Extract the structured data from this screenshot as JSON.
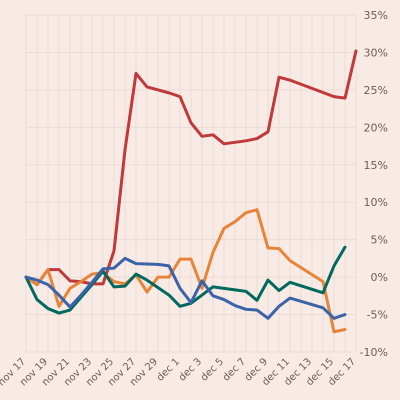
{
  "chart_data": {
    "type": "line",
    "x": [
      "nov 17",
      "nov 18",
      "nov 19",
      "nov 20",
      "nov 21",
      "nov 22",
      "nov 23",
      "nov 24",
      "nov 25",
      "nov 26",
      "nov 27",
      "nov 28",
      "nov 29",
      "nov 30",
      "dec 1",
      "dec 2",
      "dec 3",
      "dec 4",
      "dec 5",
      "dec 6",
      "dec 7",
      "dec 8",
      "dec 9",
      "dec 10",
      "dec 11",
      "dec 12",
      "dec 13",
      "dec 14",
      "dec 15",
      "dec 16",
      "dec 17"
    ],
    "x_tick_labels": [
      "nov 17",
      "nov 19",
      "nov 21",
      "nov 23",
      "nov 25",
      "nov 27",
      "nov 29",
      "dec 1",
      "dec 3",
      "dec 5",
      "dec 7",
      "dec 9",
      "dec 11",
      "dec 13",
      "dec 15",
      "dec 17"
    ],
    "y_tick_labels": [
      "35%",
      "30%",
      "25%",
      "20%",
      "15%",
      "10%",
      "5%",
      "0%",
      "-5%",
      "-10%"
    ],
    "y_ticks": [
      35,
      30,
      25,
      20,
      15,
      10,
      5,
      0,
      -5,
      -10
    ],
    "ylim": [
      -10,
      35
    ],
    "grid": true,
    "series": [
      {
        "color": "#c0393b",
        "points": [
          [
            "nov 17",
            0
          ],
          [
            "nov 18",
            -1
          ],
          [
            "nov 19",
            1
          ],
          [
            "nov 20",
            1
          ],
          [
            "nov 21",
            -0.5
          ],
          [
            "nov 22",
            -0.6
          ],
          [
            "nov 23",
            -0.9
          ],
          [
            "nov 24",
            -0.9
          ],
          [
            "nov 25",
            3.5
          ],
          [
            "nov 26",
            17
          ],
          [
            "nov 27",
            27.2
          ],
          [
            "nov 28",
            25.4
          ],
          [
            "nov 30",
            24.6
          ],
          [
            "dec 1",
            24.1
          ],
          [
            "dec 2",
            20.6
          ],
          [
            "dec 3",
            18.8
          ],
          [
            "dec 4",
            19
          ],
          [
            "dec 5",
            17.8
          ],
          [
            "dec 7",
            18.2
          ],
          [
            "dec 8",
            18.5
          ],
          [
            "dec 9",
            19.4
          ],
          [
            "dec 10",
            26.7
          ],
          [
            "dec 11",
            26.3
          ],
          [
            "dec 15",
            24.1
          ],
          [
            "dec 16",
            23.9
          ],
          [
            "dec 17",
            30.2
          ]
        ]
      },
      {
        "color": "#e6843a",
        "points": [
          [
            "nov 17",
            0
          ],
          [
            "nov 18",
            -1
          ],
          [
            "nov 19",
            1
          ],
          [
            "nov 20",
            -3.9
          ],
          [
            "nov 21",
            -1.5
          ],
          [
            "nov 22",
            -0.6
          ],
          [
            "nov 23",
            0.4
          ],
          [
            "nov 24",
            0.6
          ],
          [
            "nov 25",
            -0.6
          ],
          [
            "nov 26",
            -0.9
          ],
          [
            "nov 27",
            0.3
          ],
          [
            "nov 28",
            -2
          ],
          [
            "nov 29",
            0
          ],
          [
            "nov 30",
            0
          ],
          [
            "dec 1",
            2.4
          ],
          [
            "dec 2",
            2.4
          ],
          [
            "dec 3",
            -1.5
          ],
          [
            "dec 4",
            3.3
          ],
          [
            "dec 5",
            6.5
          ],
          [
            "dec 6",
            7.4
          ],
          [
            "dec 7",
            8.6
          ],
          [
            "dec 8",
            9
          ],
          [
            "dec 9",
            3.9
          ],
          [
            "dec 10",
            3.8
          ],
          [
            "dec 11",
            2.2
          ],
          [
            "dec 14",
            -0.6
          ],
          [
            "dec 15",
            -7.3
          ],
          [
            "dec 16",
            -7
          ]
        ]
      },
      {
        "color": "#006a5e",
        "points": [
          [
            "nov 17",
            0
          ],
          [
            "nov 18",
            -3
          ],
          [
            "nov 19",
            -4.2
          ],
          [
            "nov 20",
            -4.8
          ],
          [
            "nov 21",
            -4.4
          ],
          [
            "nov 22",
            -2.7
          ],
          [
            "nov 23",
            -1
          ],
          [
            "nov 24",
            0.8
          ],
          [
            "nov 25",
            -1.3
          ],
          [
            "nov 26",
            -1.2
          ],
          [
            "nov 27",
            0.4
          ],
          [
            "nov 28",
            -0.4
          ],
          [
            "nov 29",
            -1.4
          ],
          [
            "nov 30",
            -2.4
          ],
          [
            "dec 1",
            -3.9
          ],
          [
            "dec 2",
            -3.5
          ],
          [
            "dec 3",
            -2.4
          ],
          [
            "dec 4",
            -1.3
          ],
          [
            "dec 5",
            -1.5
          ],
          [
            "dec 6",
            -1.7
          ],
          [
            "dec 7",
            -1.9
          ],
          [
            "dec 8",
            -3.1
          ],
          [
            "dec 9",
            -0.4
          ],
          [
            "dec 10",
            -1.8
          ],
          [
            "dec 11",
            -0.7
          ],
          [
            "dec 14",
            -2.1
          ],
          [
            "dec 15",
            1.5
          ],
          [
            "dec 16",
            4
          ]
        ]
      },
      {
        "color": "#3b63a8",
        "points": [
          [
            "nov 17",
            0
          ],
          [
            "nov 18",
            -0.4
          ],
          [
            "nov 19",
            -1
          ],
          [
            "nov 20",
            -2.4
          ],
          [
            "nov 21",
            -4
          ],
          [
            "nov 22",
            -2.4
          ],
          [
            "nov 23",
            -0.7
          ],
          [
            "nov 24",
            1.1
          ],
          [
            "nov 25",
            1.2
          ],
          [
            "nov 26",
            2.5
          ],
          [
            "nov 27",
            1.8
          ],
          [
            "nov 29",
            1.7
          ],
          [
            "nov 30",
            1.5
          ],
          [
            "dec 1",
            -1.5
          ],
          [
            "dec 2",
            -3.4
          ],
          [
            "dec 3",
            -0.5
          ],
          [
            "dec 4",
            -2.5
          ],
          [
            "dec 5",
            -3
          ],
          [
            "dec 6",
            -3.8
          ],
          [
            "dec 7",
            -4.3
          ],
          [
            "dec 8",
            -4.4
          ],
          [
            "dec 9",
            -5.5
          ],
          [
            "dec 10",
            -3.9
          ],
          [
            "dec 11",
            -2.8
          ],
          [
            "dec 14",
            -4.1
          ],
          [
            "dec 15",
            -5.5
          ],
          [
            "dec 16",
            -5
          ]
        ]
      }
    ]
  }
}
